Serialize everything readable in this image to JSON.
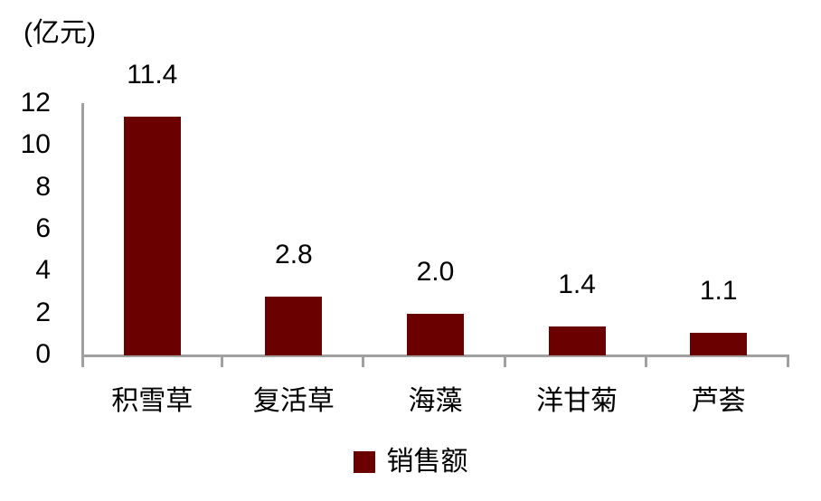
{
  "chart_data": {
    "type": "bar",
    "title": "",
    "unit_label": "(亿元)",
    "categories": [
      "积雪草",
      "复活草",
      "海藻",
      "洋甘菊",
      "芦荟"
    ],
    "values": [
      11.4,
      2.8,
      2.0,
      1.4,
      1.1
    ],
    "value_labels": [
      "11.4",
      "2.8",
      "2.0",
      "1.4",
      "1.1"
    ],
    "series": [
      {
        "name": "销售额",
        "values": [
          11.4,
          2.8,
          2.0,
          1.4,
          1.1
        ]
      }
    ],
    "yticks": [
      0,
      2,
      4,
      6,
      8,
      10,
      12
    ],
    "ylim": [
      0,
      12
    ],
    "grid": false,
    "legend_position": "bottom",
    "legend": [
      {
        "label": "销售额",
        "color": "#6B0000"
      }
    ],
    "colors": {
      "bar": "#6B0000",
      "axis": "#A0A0A0",
      "text": "#000000",
      "background": "#FFFFFF"
    }
  }
}
